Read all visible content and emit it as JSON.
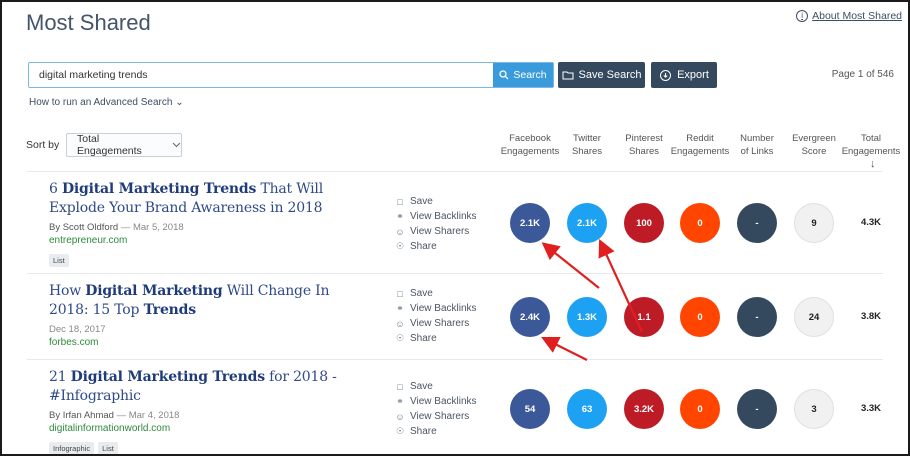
{
  "header": {
    "title": "Most Shared",
    "about_link": "About Most Shared"
  },
  "search": {
    "value": "digital marketing trends",
    "button_label": "Search",
    "save_label": "Save Search",
    "export_label": "Export",
    "page_info": "Page 1 of 546",
    "advanced_link": "How to run an Advanced Search"
  },
  "sort": {
    "label": "Sort by",
    "selected": "Total Engagements"
  },
  "columns": [
    [
      "Facebook",
      "Engagements"
    ],
    [
      "Twitter",
      "Shares"
    ],
    [
      "Pinterest",
      "Shares"
    ],
    [
      "Reddit",
      "Engagements"
    ],
    [
      "Number",
      "of Links"
    ],
    [
      "Evergreen",
      "Score"
    ],
    [
      "Total",
      "Engagements"
    ]
  ],
  "sort_arrow": "↓",
  "actions": [
    "Save",
    "View Backlinks",
    "View Sharers",
    "Share"
  ],
  "articles": [
    {
      "title_parts": [
        [
          "6 ",
          false
        ],
        [
          "Digital Marketing Trends",
          true
        ],
        [
          " That Will Explode Your Brand Awareness in 2018",
          false
        ]
      ],
      "author": "By Scott Oldford",
      "date": "Mar 5, 2018",
      "domain": "entrepreneur.com",
      "tags": [
        "List"
      ],
      "metrics": [
        "2.1K",
        "2.1K",
        "100",
        "0",
        "-",
        "9"
      ],
      "total": "4.3K"
    },
    {
      "title_parts": [
        [
          "How ",
          false
        ],
        [
          "Digital Marketing",
          true
        ],
        [
          " Will Change In 2018: 15 Top ",
          false
        ],
        [
          "Trends",
          true
        ]
      ],
      "author": "",
      "date": "Dec 18, 2017",
      "domain": "forbes.com",
      "tags": [],
      "metrics": [
        "2.4K",
        "1.3K",
        "1.1",
        "0",
        "-",
        "24"
      ],
      "total": "3.8K"
    },
    {
      "title_parts": [
        [
          "21 ",
          false
        ],
        [
          "Digital Marketing Trends",
          true
        ],
        [
          " for 2018 - #Infographic",
          false
        ]
      ],
      "author": "By Irfan Ahmad",
      "date": "Mar 4, 2018",
      "domain": "digitalinformationworld.com",
      "tags": [
        "Infographic",
        "List"
      ],
      "metrics": [
        "54",
        "63",
        "3.2K",
        "0",
        "-",
        "3"
      ],
      "total": "3.3K"
    }
  ],
  "colors": {
    "facebook": "#3b5998",
    "twitter": "#1da1f2",
    "pinterest": "#bd1c27",
    "reddit": "#ff4500",
    "links": "#34495e",
    "evergreen": "#f1f1f1",
    "annotation_arrow": "#e02020"
  }
}
